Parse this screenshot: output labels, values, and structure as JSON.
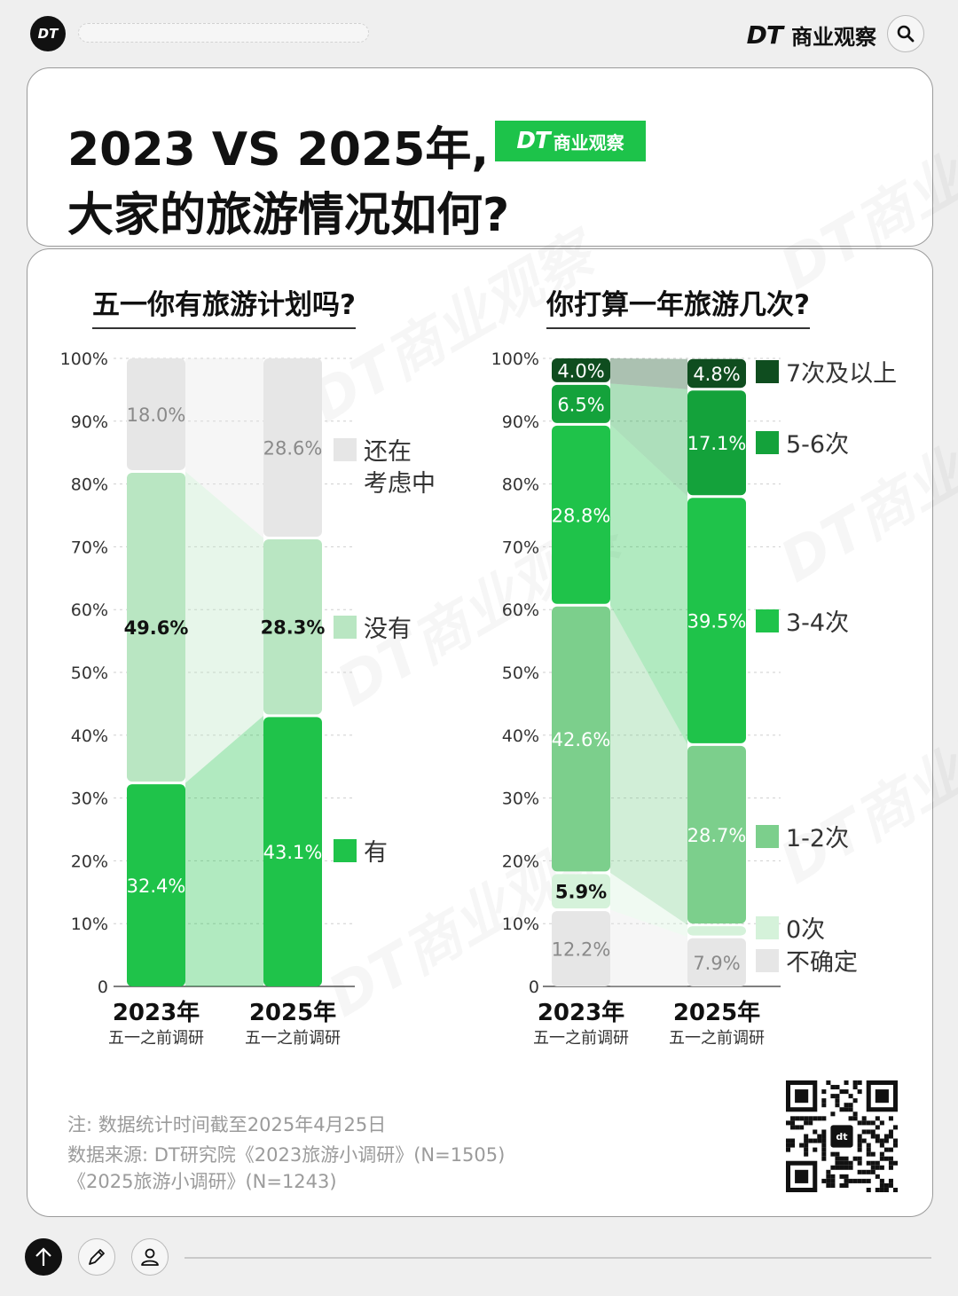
{
  "header": {
    "logo_text": "DT",
    "brand_dt": "DT",
    "brand_name": "商业观察"
  },
  "title": {
    "line1": "2023 VS 2025年,",
    "line2": "大家的旅游情况如何?",
    "badge_dt": "DT",
    "badge_name": "商业观察"
  },
  "colors": {
    "green_dark": "#0f4d1f",
    "green_mid_dark": "#14a23b",
    "green_bright": "#1fc34a",
    "green_medium": "#7ccf8c",
    "green_light": "#b9e6c2",
    "green_pale": "#d5f2da",
    "gray_light": "#e6e6e6"
  },
  "chart_data": [
    {
      "type": "bar",
      "stacked": true,
      "title": "五一你有旅游计划吗?",
      "categories": [
        "2023年",
        "2025年"
      ],
      "category_subtitles": [
        "五一之前调研",
        "五一之前调研"
      ],
      "y_ticks": [
        "0",
        "10%",
        "20%",
        "30%",
        "40%",
        "50%",
        "60%",
        "70%",
        "80%",
        "90%",
        "100%"
      ],
      "ylim": [
        0,
        100
      ],
      "legend_position": "right",
      "series": [
        {
          "name": "有",
          "values": [
            32.4,
            43.1
          ],
          "labels": [
            "32.4%",
            "43.1%"
          ],
          "color": "#1fc34a"
        },
        {
          "name": "没有",
          "values": [
            49.6,
            28.3
          ],
          "labels": [
            "49.6%",
            "28.3%"
          ],
          "color": "#b9e6c2"
        },
        {
          "name": "还在考虑中",
          "values": [
            18.0,
            28.6
          ],
          "labels": [
            "18.0%",
            "28.6%"
          ],
          "color": "#e6e6e6"
        }
      ],
      "legend_labels": [
        "还在",
        "考虑中",
        "没有",
        "有"
      ]
    },
    {
      "type": "bar",
      "stacked": true,
      "title": "你打算一年旅游几次?",
      "categories": [
        "2023年",
        "2025年"
      ],
      "category_subtitles": [
        "五一之前调研",
        "五一之前调研"
      ],
      "y_ticks": [
        "0",
        "10%",
        "20%",
        "30%",
        "40%",
        "50%",
        "60%",
        "70%",
        "80%",
        "90%",
        "100%"
      ],
      "ylim": [
        0,
        100
      ],
      "legend_position": "right",
      "series": [
        {
          "name": "不确定",
          "values": [
            12.2,
            7.9
          ],
          "labels": [
            "12.2%",
            "7.9%"
          ],
          "color": "#e6e6e6"
        },
        {
          "name": "0次",
          "values": [
            5.9,
            1.9
          ],
          "labels": [
            "5.9%",
            ""
          ],
          "color": "#d5f2da"
        },
        {
          "name": "1-2次",
          "values": [
            42.6,
            28.7
          ],
          "labels": [
            "42.6%",
            "28.7%"
          ],
          "color": "#7ccf8c"
        },
        {
          "name": "3-4次",
          "values": [
            28.8,
            39.5
          ],
          "labels": [
            "28.8%",
            "39.5%"
          ],
          "color": "#1fc34a"
        },
        {
          "name": "5-6次",
          "values": [
            6.5,
            17.1
          ],
          "labels": [
            "6.5%",
            "17.1%"
          ],
          "color": "#14a23b"
        },
        {
          "name": "7次及以上",
          "values": [
            4.0,
            4.8
          ],
          "labels": [
            "4.0%",
            "4.8%"
          ],
          "color": "#0f4d1f"
        }
      ]
    }
  ],
  "notes": {
    "line1": "注: 数据统计时间截至2025年4月25日",
    "line2": "数据来源: DT研究院《2023旅游小调研》(N=1505)",
    "line3": "《2025旅游小调研》(N=1243)"
  },
  "qr": {
    "center_text": "dt"
  },
  "footer": {
    "icons": [
      "arrow-up-icon",
      "pencil-icon",
      "user-icon"
    ]
  },
  "watermark_text": "DT商业观察"
}
